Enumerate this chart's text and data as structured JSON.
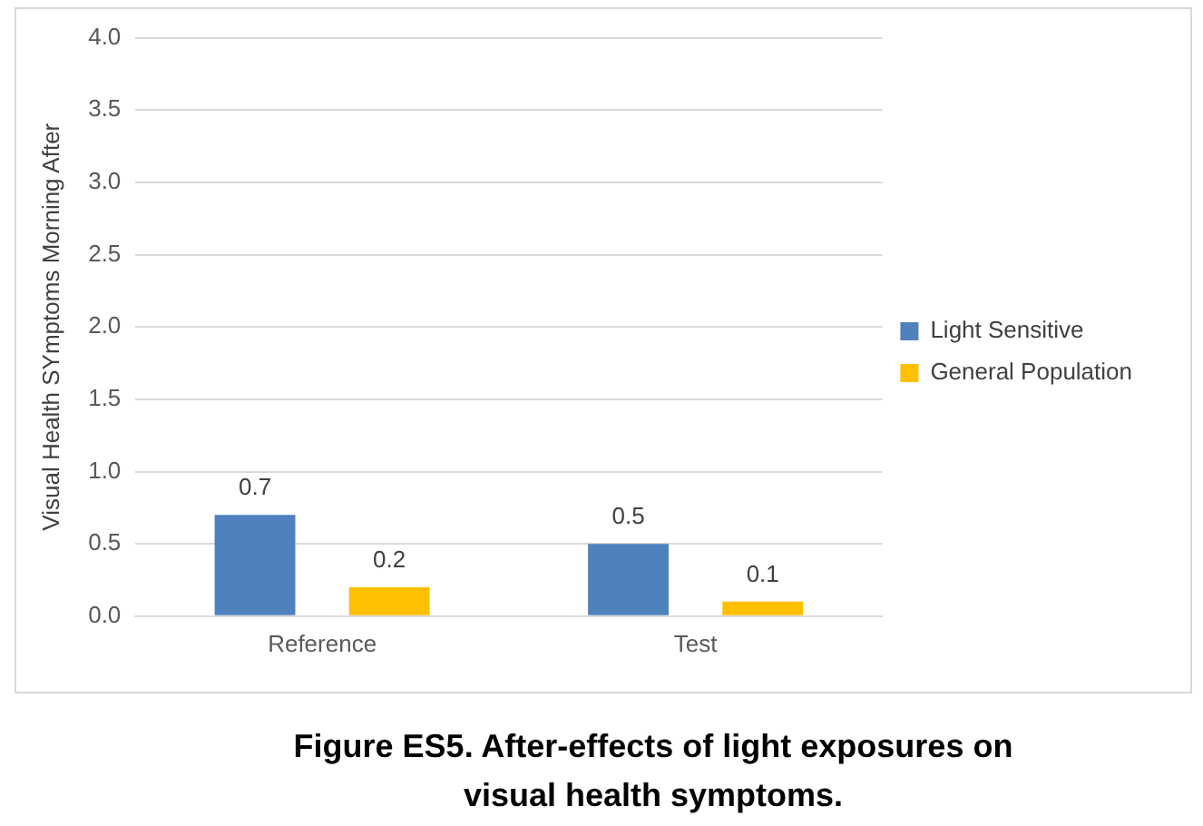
{
  "chart_data": {
    "type": "bar",
    "title": "Figure ES5. After-effects of light exposures on visual health symptoms.",
    "ylabel": "Visual Health SYmptoms Morning After",
    "categories": [
      "Reference",
      "Test"
    ],
    "series": [
      {
        "name": "Light Sensitive",
        "color": "#4f81bd",
        "values": [
          0.7,
          0.5
        ]
      },
      {
        "name": "General Population",
        "color": "#ffc000",
        "values": [
          0.2,
          0.1
        ]
      }
    ],
    "ylim": [
      0,
      4
    ],
    "yticks": [
      {
        "value": 0,
        "label": "0.0"
      },
      {
        "value": 0.5,
        "label": "0.5"
      },
      {
        "value": 1,
        "label": "1.0"
      },
      {
        "value": 1.5,
        "label": "1.5"
      },
      {
        "value": 2,
        "label": "2.0"
      },
      {
        "value": 2.5,
        "label": "2.5"
      },
      {
        "value": 3,
        "label": "3.0"
      },
      {
        "value": 3.5,
        "label": "3.5"
      },
      {
        "value": 4,
        "label": "4.0"
      }
    ],
    "grid": "y",
    "legend": "right",
    "data_labels": true
  }
}
